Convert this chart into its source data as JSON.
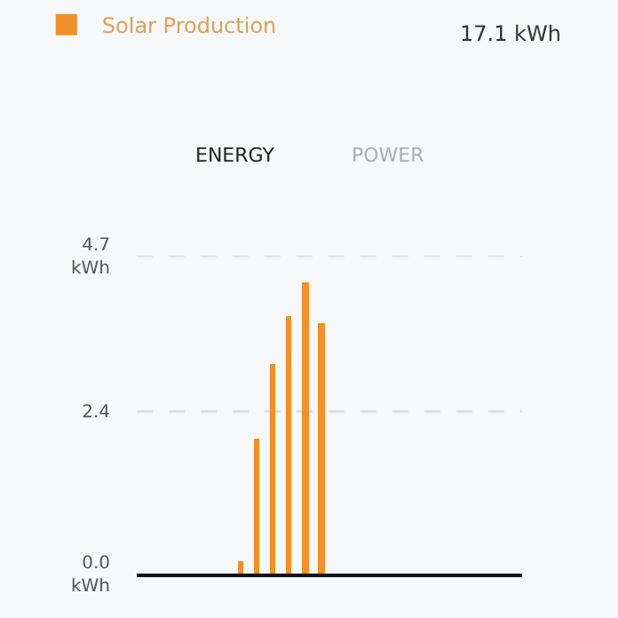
{
  "chart_data": {
    "type": "bar",
    "categories": [
      null,
      null,
      null,
      null,
      null,
      null,
      null,
      null,
      null,
      null,
      null,
      null,
      null,
      null,
      null,
      null,
      null,
      null,
      null,
      null,
      null,
      null,
      null,
      null
    ],
    "series": [
      {
        "name": "Solar Production",
        "color": "#f0902a",
        "values": [
          null,
          null,
          null,
          null,
          null,
          null,
          0.18,
          1.99,
          3.1,
          3.8,
          4.3,
          3.71,
          null,
          null,
          null,
          null,
          null,
          null,
          null,
          null,
          null,
          null,
          null,
          null
        ]
      }
    ],
    "ylim": [
      0,
      4.7
    ],
    "yticks": [
      {
        "value": 0,
        "label": "0.0\nkWh"
      },
      {
        "value": 2.4,
        "label": "2.4"
      },
      {
        "value": 4.7,
        "label": "4.7\nkWh"
      }
    ],
    "grid": "y",
    "legend": "top left",
    "tick_labels": "y",
    "annotations": [
      "17.1 kWh",
      "ENERGY",
      "POWER"
    ]
  }
}
